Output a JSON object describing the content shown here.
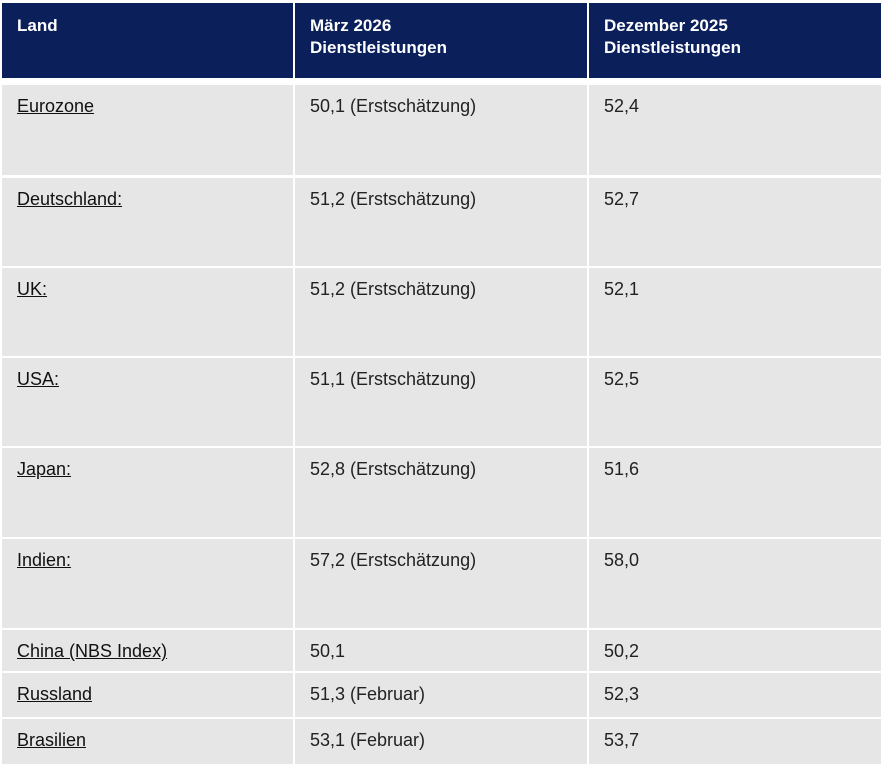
{
  "table": {
    "header": [
      "Land",
      "März 2026\nDienstleistungen",
      "Dezember 2025\nDienstleistungen"
    ],
    "rows": [
      [
        "Eurozone",
        "50,1 (Erstschätzung)",
        "52,4"
      ],
      [
        "Deutschland:",
        "51,2 (Erstschätzung)",
        "52,7"
      ],
      [
        "UK:",
        "51,2 (Erstschätzung)",
        "52,1"
      ],
      [
        "USA:",
        "51,1 (Erstschätzung)",
        "52,5"
      ],
      [
        "Japan:",
        "52,8 (Erstschätzung)",
        "51,6"
      ],
      [
        "Indien:",
        "57,2 (Erstschätzung)",
        "58,0"
      ],
      [
        "China (NBS Index)",
        "50,1",
        "50,2"
      ],
      [
        "Russland",
        "51,3 (Februar)",
        "52,3"
      ],
      [
        "Brasilien",
        "53,1 (Februar)",
        "53,7"
      ]
    ]
  }
}
